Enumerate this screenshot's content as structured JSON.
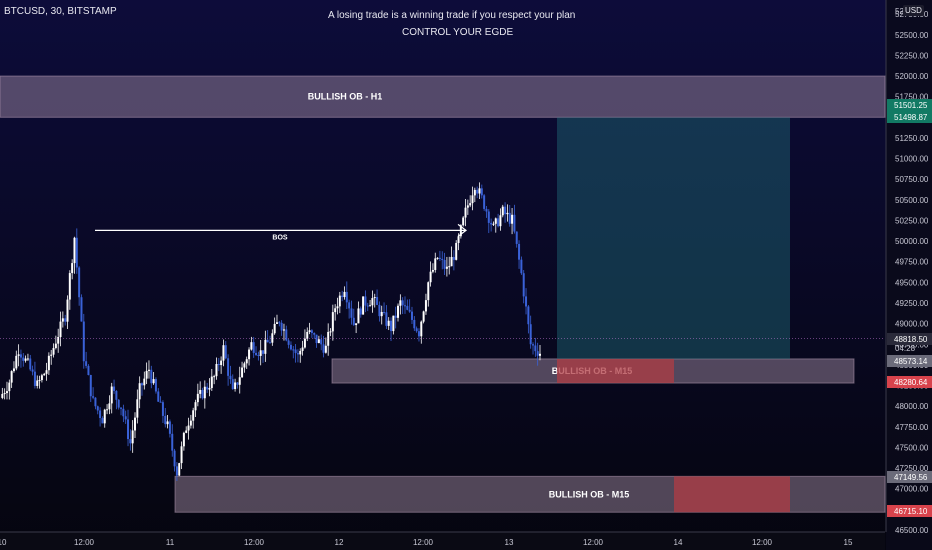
{
  "header": {
    "symbol_line": "BTCUSD, 30, BITSTAMP",
    "currency": "USD"
  },
  "notes": {
    "line1": "A losing trade is a winning trade if you respect your plan",
    "line2": "CONTROL YOUR EGDE"
  },
  "colors": {
    "background_top": "#0d0c3a",
    "background_bottom": "#05050f",
    "candle_up": "#ffffff",
    "candle_down": "#3a62d8",
    "zone_fill": "#b9a0b8",
    "target_zone": "#1f6b78",
    "stop_zone": "#b03c44",
    "current_price": "#6b6b7a",
    "target_label": "#127a64",
    "stop_label": "#d8434c"
  },
  "chart_data": {
    "type": "candlestick",
    "x_ticks": [
      "10",
      "12:00",
      "11",
      "12:00",
      "12",
      "12:00",
      "13",
      "12:00",
      "14",
      "12:00",
      "15"
    ],
    "y_ticks": [
      46500,
      46750,
      47000,
      47250,
      47500,
      47750,
      48000,
      48250,
      48500,
      48750,
      49000,
      49250,
      49500,
      49750,
      50000,
      50250,
      50500,
      50750,
      51000,
      51250,
      51500,
      51750,
      52000,
      52250,
      52500,
      52750
    ],
    "y_range": [
      46500,
      52800
    ],
    "y_tick_top_partial": "52",
    "price_labels": [
      {
        "value": "51501.25",
        "kind": "target"
      },
      {
        "value": "51498.87",
        "kind": "target"
      },
      {
        "value": "48818.50",
        "kind": "current"
      },
      {
        "value": "04:28",
        "kind": "countdown"
      },
      {
        "value": "48573.14",
        "kind": "zone"
      },
      {
        "value": "48280.64",
        "kind": "stop"
      },
      {
        "value": "47149.56",
        "kind": "zone"
      },
      {
        "value": "46715.10",
        "kind": "stop"
      }
    ],
    "zones": [
      {
        "label": "BULLISH OB - H1",
        "low": 51500,
        "high": 52000
      },
      {
        "label": "BULLISH OB - M15",
        "low": 48280,
        "high": 48573
      },
      {
        "label": "BULLISH OB - M15",
        "low": 46715,
        "high": 47150
      }
    ],
    "bos": {
      "label": "BOS",
      "level": 50130
    },
    "position": {
      "entry": 48573,
      "target": 51499,
      "stop": 48280,
      "entry2": 47150,
      "stop2": 46715
    },
    "current_price": 48818.5,
    "path": [
      [
        0,
        48100
      ],
      [
        1,
        48300
      ],
      [
        2,
        48700
      ],
      [
        3,
        48500
      ],
      [
        4,
        48250
      ],
      [
        5,
        48450
      ],
      [
        6,
        48800
      ],
      [
        7,
        49100
      ],
      [
        8,
        50050
      ],
      [
        9,
        48600
      ],
      [
        10,
        48050
      ],
      [
        11,
        47850
      ],
      [
        12,
        48200
      ],
      [
        13,
        48000
      ],
      [
        14,
        47550
      ],
      [
        15,
        48200
      ],
      [
        16,
        48450
      ],
      [
        17,
        48050
      ],
      [
        18,
        47750
      ],
      [
        19,
        47200
      ],
      [
        20,
        47750
      ],
      [
        21,
        48050
      ],
      [
        22,
        48200
      ],
      [
        23,
        48350
      ],
      [
        24,
        48700
      ],
      [
        25,
        48150
      ],
      [
        26,
        48450
      ],
      [
        27,
        48750
      ],
      [
        28,
        48650
      ],
      [
        29,
        48800
      ],
      [
        30,
        49050
      ],
      [
        31,
        48800
      ],
      [
        32,
        48600
      ],
      [
        33,
        48900
      ],
      [
        34,
        48800
      ],
      [
        35,
        48700
      ],
      [
        36,
        49200
      ],
      [
        37,
        49450
      ],
      [
        38,
        49000
      ],
      [
        39,
        49250
      ],
      [
        40,
        49300
      ],
      [
        41,
        49100
      ],
      [
        42,
        48950
      ],
      [
        43,
        49250
      ],
      [
        44,
        49100
      ],
      [
        45,
        48900
      ],
      [
        46,
        49500
      ],
      [
        47,
        49800
      ],
      [
        48,
        49650
      ],
      [
        49,
        49900
      ],
      [
        50,
        50350
      ],
      [
        51,
        50700
      ],
      [
        52,
        50450
      ],
      [
        53,
        50150
      ],
      [
        54,
        50350
      ],
      [
        55,
        50250
      ],
      [
        56,
        49600
      ],
      [
        57,
        48750
      ],
      [
        58,
        48650
      ]
    ]
  }
}
